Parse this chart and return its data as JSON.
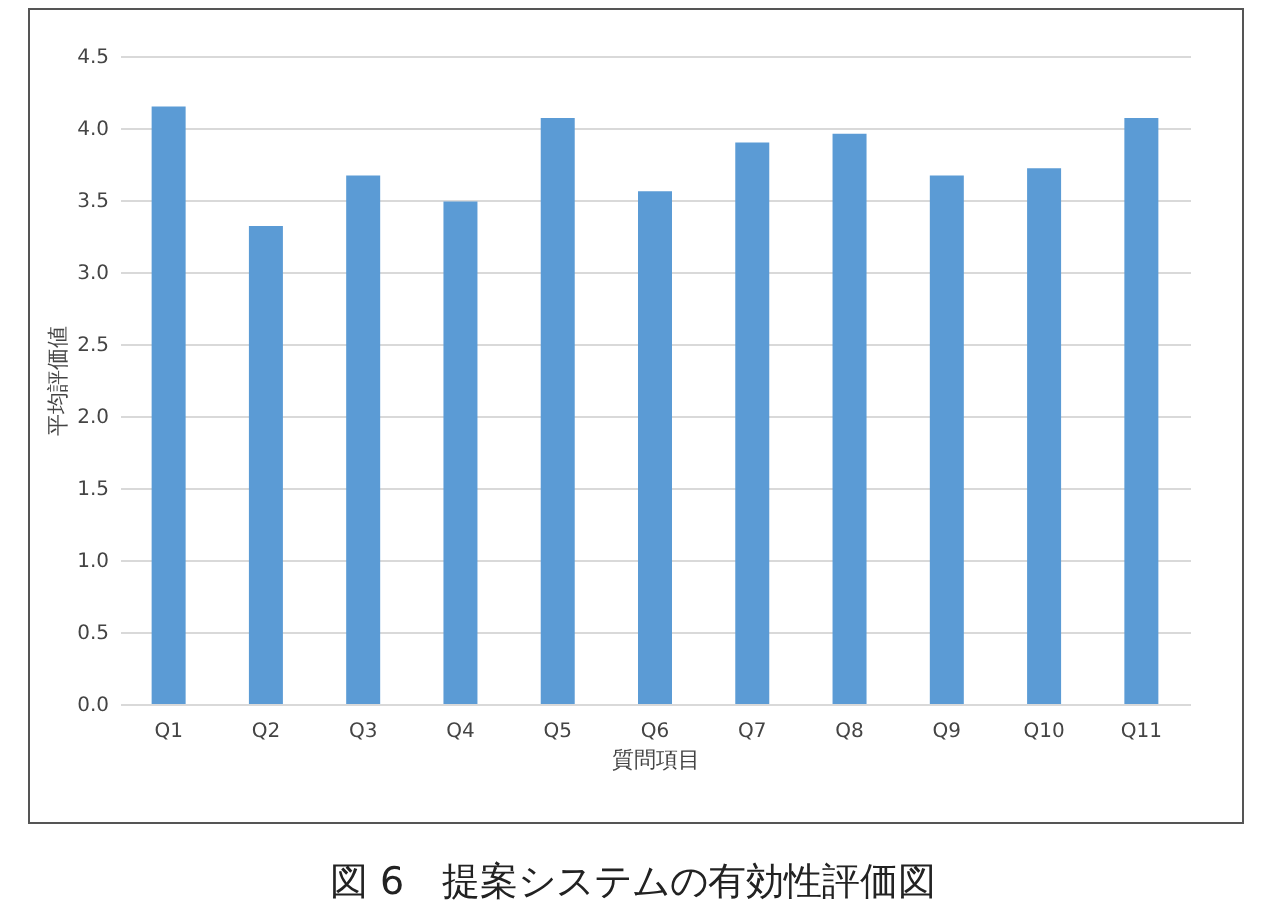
{
  "chart_data": {
    "type": "bar",
    "xlabel": "質問項目",
    "ylabel": "平均評価値",
    "categories": [
      "Q1",
      "Q2",
      "Q3",
      "Q4",
      "Q5",
      "Q6",
      "Q7",
      "Q8",
      "Q9",
      "Q10",
      "Q11"
    ],
    "values": [
      4.15,
      3.32,
      3.67,
      3.49,
      4.07,
      3.56,
      3.9,
      3.96,
      3.67,
      3.72,
      4.07
    ],
    "color": "#5b9bd5",
    "ylim": [
      0,
      4.5
    ],
    "yticks": [
      {
        "value": 0,
        "label": "0.0"
      },
      0.5,
      {
        "value": 1,
        "label": "1.0"
      },
      1.5,
      {
        "value": 2,
        "label": "2.0"
      },
      2.5,
      {
        "value": 3,
        "label": "3.0"
      },
      3.5,
      {
        "value": 4,
        "label": "4.0"
      },
      4.5
    ],
    "grid": "y",
    "annotations": [
      "図 6　提案システムの有効性評価図"
    ]
  }
}
